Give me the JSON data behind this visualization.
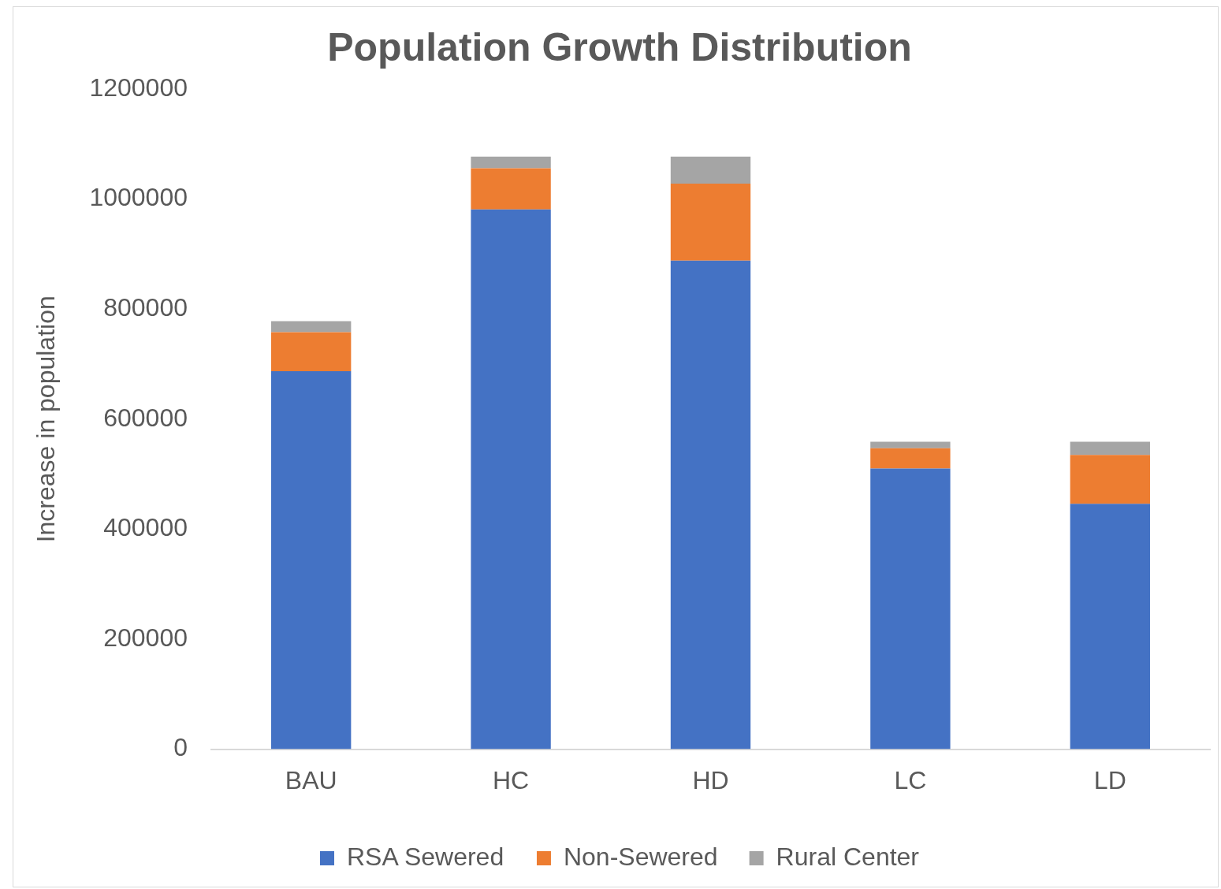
{
  "chart_data": {
    "type": "bar",
    "title": "Population Growth Distribution",
    "ylabel": "Increase in population",
    "categories": [
      "BAU",
      "HC",
      "HD",
      "LC",
      "LD"
    ],
    "stacked": true,
    "ylim": [
      0,
      1200000
    ],
    "yticks": [
      0,
      200000,
      400000,
      600000,
      800000,
      1000000,
      1200000
    ],
    "grid": false,
    "legend": "bottom",
    "series": [
      {
        "name": "RSA Sewered",
        "color": "#4472c4",
        "values": [
          687000,
          981000,
          888000,
          510000,
          446000
        ]
      },
      {
        "name": "Non-Sewered",
        "color": "#ed7d31",
        "values": [
          71000,
          75000,
          140000,
          37000,
          89000
        ]
      },
      {
        "name": "Rural Center",
        "color": "#a5a5a5",
        "values": [
          20000,
          21000,
          49000,
          12000,
          24000
        ]
      }
    ]
  }
}
